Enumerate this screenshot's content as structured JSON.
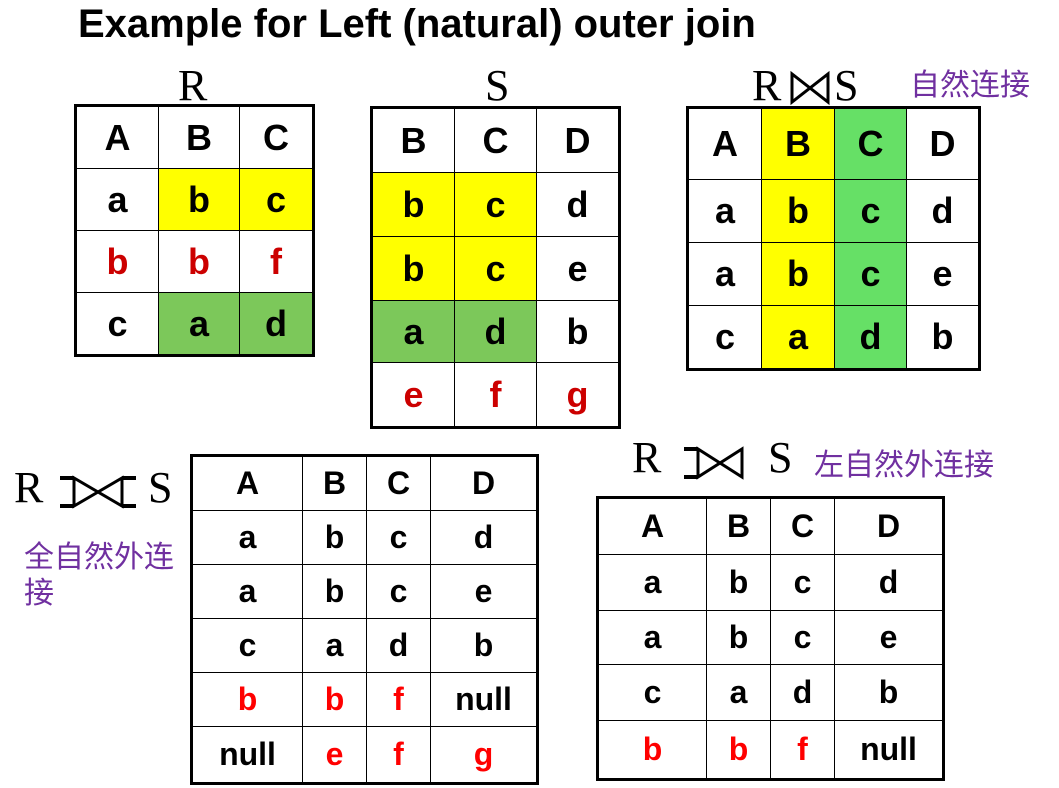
{
  "title": "Example for Left (natural) outer join",
  "labels": {
    "R": "R",
    "S": "S",
    "natural_join_cn": "自然连接",
    "left_outer_cn": "左自然外连接",
    "full_outer_cn": "全自然外连接"
  },
  "table_R": {
    "headers": [
      "A",
      "B",
      "C"
    ],
    "rows": [
      [
        "a",
        "b",
        "c"
      ],
      [
        "b",
        "b",
        "f"
      ],
      [
        "c",
        "a",
        "d"
      ]
    ]
  },
  "table_S": {
    "headers": [
      "B",
      "C",
      "D"
    ],
    "rows": [
      [
        "b",
        "c",
        "d"
      ],
      [
        "b",
        "c",
        "e"
      ],
      [
        "a",
        "d",
        "b"
      ],
      [
        "e",
        "f",
        "g"
      ]
    ]
  },
  "table_natural": {
    "headers": [
      "A",
      "B",
      "C",
      "D"
    ],
    "rows": [
      [
        "a",
        "b",
        "c",
        "d"
      ],
      [
        "a",
        "b",
        "c",
        "e"
      ],
      [
        "c",
        "a",
        "d",
        "b"
      ]
    ]
  },
  "table_full": {
    "headers": [
      "A",
      "B",
      "C",
      "D"
    ],
    "rows": [
      [
        "a",
        "b",
        "c",
        "d"
      ],
      [
        "a",
        "b",
        "c",
        "e"
      ],
      [
        "c",
        "a",
        "d",
        "b"
      ],
      [
        "b",
        "b",
        "f",
        "null"
      ],
      [
        "null",
        "e",
        "f",
        "g"
      ]
    ]
  },
  "table_left": {
    "headers": [
      "A",
      "B",
      "C",
      "D"
    ],
    "rows": [
      [
        "a",
        "b",
        "c",
        "d"
      ],
      [
        "a",
        "b",
        "c",
        "e"
      ],
      [
        "c",
        "a",
        "d",
        "b"
      ],
      [
        "b",
        "b",
        "f",
        "null"
      ]
    ]
  },
  "colors": {
    "highlight_yellow": "#ffff00",
    "highlight_green": "#7cc85a",
    "highlight_bright_green": "#66e066",
    "mismatch_red": "#cc0000",
    "chinese_label_purple": "#7030a0"
  }
}
